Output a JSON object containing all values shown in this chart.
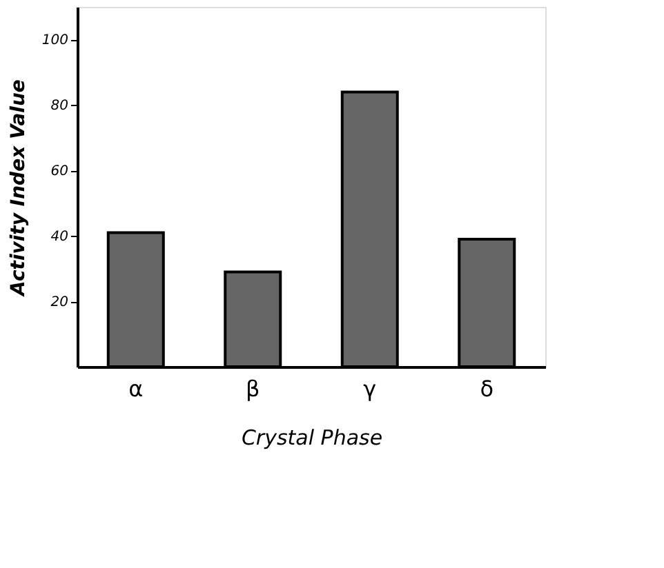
{
  "chart_data": {
    "type": "bar",
    "xlabel": "Crystal Phase",
    "ylabel": "Activity Index Value",
    "categories": [
      "α",
      "β",
      "γ",
      "δ"
    ],
    "values": [
      41,
      29,
      84,
      39
    ],
    "color": "#666666",
    "ylim": [
      0,
      110
    ],
    "yticks": [
      20,
      40,
      60,
      80,
      100
    ],
    "grid": false
  }
}
